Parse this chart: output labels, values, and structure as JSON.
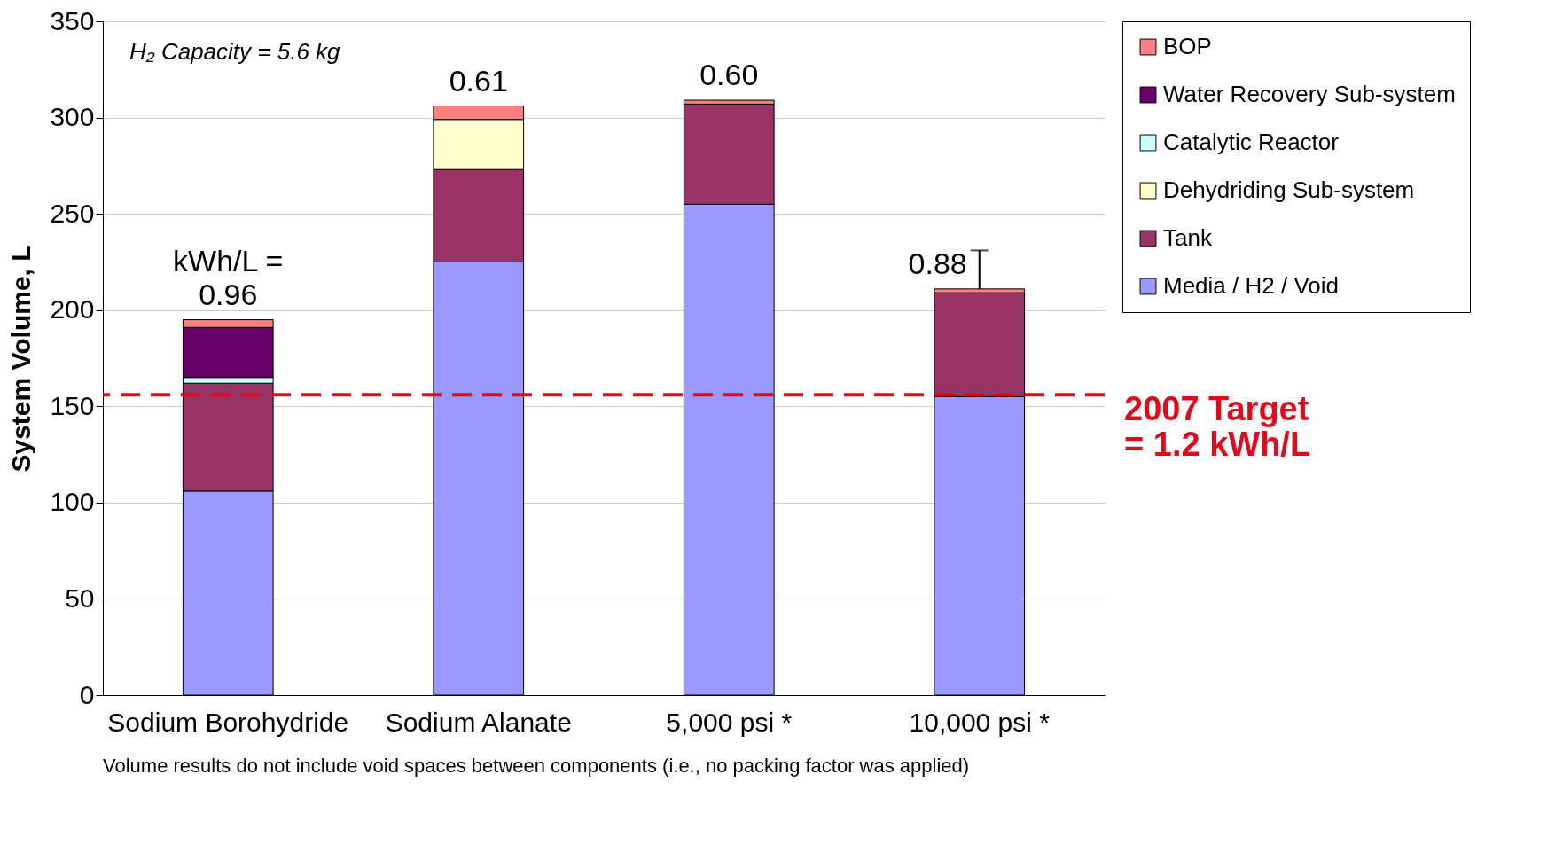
{
  "chart_data": {
    "type": "bar",
    "stacked": true,
    "ylabel": "System Volume, L",
    "categories": [
      "Sodium Borohydride",
      "Sodium Alanate",
      "5,000 psi *",
      "10,000 psi *"
    ],
    "series": [
      {
        "name": "Media / H2 / Void",
        "color": "#9999ff",
        "values": [
          106,
          225,
          255,
          155
        ]
      },
      {
        "name": "Tank",
        "color": "#993366",
        "values": [
          56,
          48,
          52,
          54
        ]
      },
      {
        "name": "Dehydriding Sub-system",
        "color": "#ffffcc",
        "values": [
          null,
          26,
          null,
          null
        ]
      },
      {
        "name": "Catalytic Reactor",
        "color": "#ccffff",
        "values": [
          3,
          null,
          null,
          null
        ]
      },
      {
        "name": "Water Recovery Sub-system",
        "color": "#660066",
        "values": [
          26,
          null,
          null,
          null
        ]
      },
      {
        "name": "BOP",
        "color": "#ff8080",
        "values": [
          4,
          7,
          2,
          2
        ],
        "errors": [
          null,
          null,
          null,
          [
            211,
            231
          ]
        ]
      }
    ],
    "ylim": [
      0,
      350
    ],
    "yticks": [
      0,
      50,
      100,
      150,
      200,
      250,
      300,
      350
    ],
    "grid": "y",
    "legend": "right",
    "ref_lines": [
      {
        "axis": "y",
        "value": 156,
        "color": "#dd0d1e",
        "line_style": "dashed"
      }
    ],
    "annotations": [
      {
        "text": "kWh/L =\n0.96",
        "x": "Sodium Borohydride",
        "y": 195
      },
      {
        "text": "0.61",
        "x": "Sodium Alanate",
        "y": 306
      },
      {
        "text": "0.60",
        "x": "5,000 psi *",
        "y": 309
      },
      {
        "text": "0.88",
        "x": "10,000 psi *",
        "y": 211
      },
      "H₂ Capacity = 5.6 kg",
      "Volume results do not include void spaces between components (i.e., no packing factor was applied)",
      "2007 Target\n= 1.2 kWh/L"
    ]
  }
}
